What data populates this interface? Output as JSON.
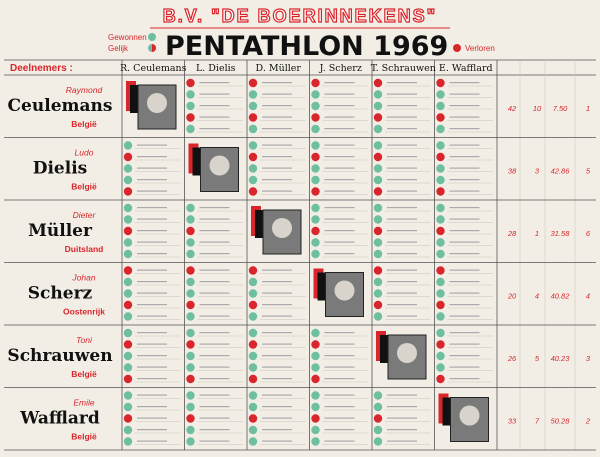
{
  "header": {
    "club": "B.V. \"DE BOERINNEKENS\"",
    "title": "PENTATHLON 1969",
    "legend": {
      "won": "Gewonnen",
      "draw": "Gelijk",
      "lost": "Verloren"
    }
  },
  "table": {
    "corner": "Deelnemers :",
    "columns": [
      "R. Ceulemans",
      "L. Dielis",
      "D. Müller",
      "J. Scherz",
      "T. Schrauwen",
      "E. Wafflard"
    ],
    "rows": [
      {
        "first": "Raymond",
        "last": "Ceulemans",
        "country": "België",
        "stats": [
          "42",
          "10",
          "7.50",
          "1"
        ]
      },
      {
        "first": "Ludo",
        "last": "Dielis",
        "country": "België",
        "stats": [
          "38",
          "3",
          "42.86",
          "5"
        ]
      },
      {
        "first": "Dieter",
        "last": "Müller",
        "country": "Duitsland",
        "stats": [
          "28",
          "1",
          "31.58",
          "6"
        ]
      },
      {
        "first": "Johan",
        "last": "Scherz",
        "country": "Oostenrijk",
        "stats": [
          "20",
          "4",
          "40.82",
          "4"
        ]
      },
      {
        "first": "Toni",
        "last": "Schrauwen",
        "country": "België",
        "stats": [
          "26",
          "5",
          "40.23",
          "3"
        ]
      },
      {
        "first": "Emile",
        "last": "Wafflard",
        "country": "België",
        "stats": [
          "33",
          "7",
          "50.28",
          "2"
        ]
      }
    ]
  }
}
